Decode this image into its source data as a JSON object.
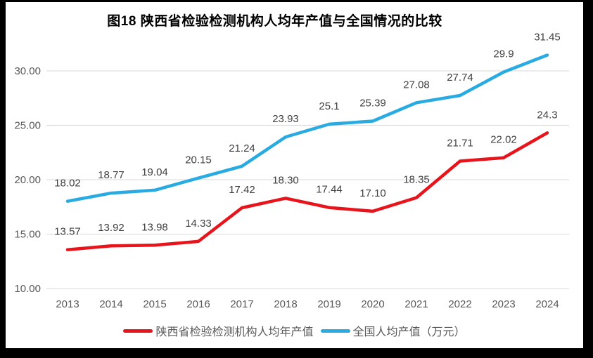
{
  "title": "图18 陕西省检验检测机构人均年产值与全国情况的比较",
  "chart_data": {
    "type": "line",
    "categories": [
      "2013",
      "2014",
      "2015",
      "2016",
      "2017",
      "2018",
      "2019",
      "2020",
      "2021",
      "2022",
      "2023",
      "2024"
    ],
    "series": [
      {
        "name": "陕西省检验检测机构人均年产值",
        "color": "#e8141c",
        "values": [
          13.57,
          13.92,
          13.98,
          14.33,
          17.42,
          18.3,
          17.44,
          17.1,
          18.35,
          21.71,
          22.02,
          24.3
        ],
        "labels": [
          "13.57",
          "13.92",
          "13.98",
          "14.33",
          "17.42",
          "18.30",
          "17.44",
          "17.10",
          "18.35",
          "21.71",
          "22.02",
          "24.3"
        ]
      },
      {
        "name": "全国人均产值（万元）",
        "color": "#29abe2",
        "values": [
          18.02,
          18.77,
          19.04,
          20.15,
          21.24,
          23.93,
          25.1,
          25.39,
          27.08,
          27.74,
          29.9,
          31.45
        ],
        "labels": [
          "18.02",
          "18.77",
          "19.04",
          "20.15",
          "21.24",
          "23.93",
          "25.1",
          "25.39",
          "27.08",
          "27.74",
          "29.9",
          "31.45"
        ]
      }
    ],
    "yticks": [
      {
        "value": 10,
        "label": "10.00"
      },
      {
        "value": 15,
        "label": "15.00"
      },
      {
        "value": 20,
        "label": "20.00"
      },
      {
        "value": 25,
        "label": "25.00"
      },
      {
        "value": 30,
        "label": "30.00"
      }
    ],
    "ylim": [
      10,
      32.5
    ],
    "xlabel": "",
    "ylabel": "",
    "grid": true,
    "legend_position": "bottom",
    "grid_color": "#d9d9d9",
    "axis_label_color": "#595959",
    "data_label_color": "#3f3f3f",
    "background_color": "#ffffff",
    "frame_color": "#000000"
  }
}
